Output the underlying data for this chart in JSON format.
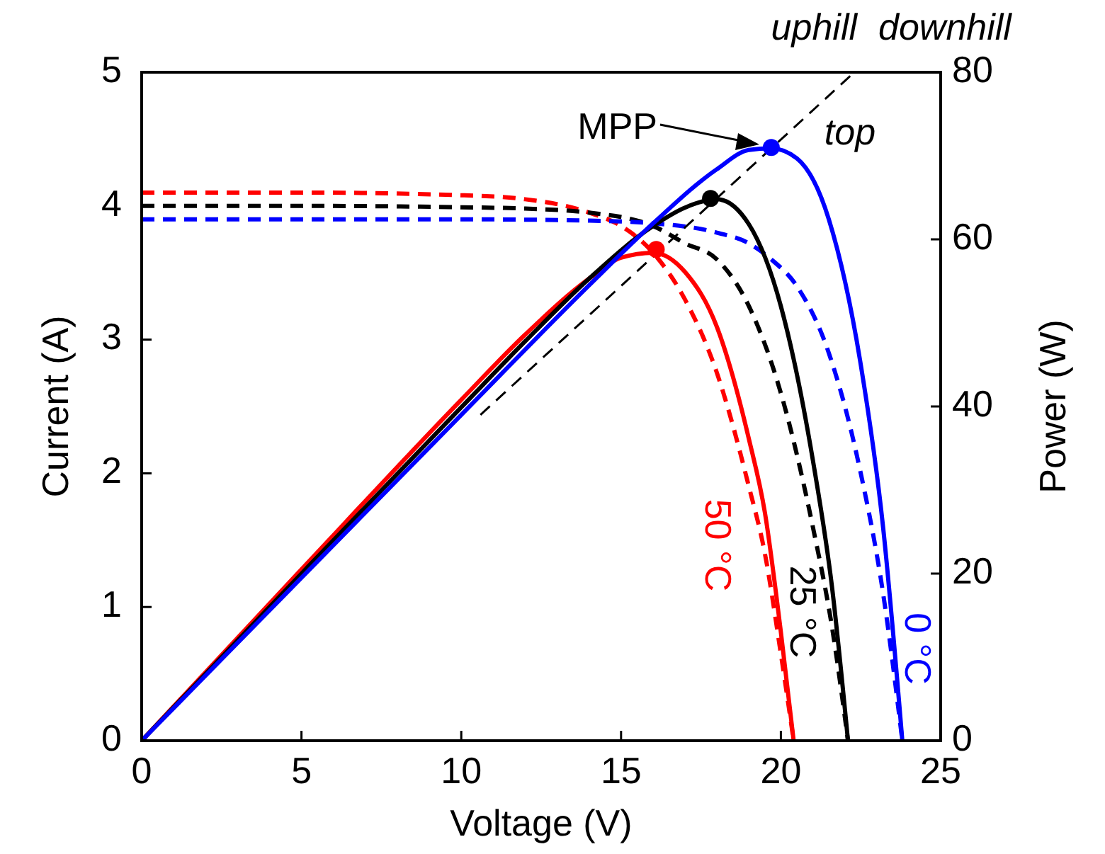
{
  "chart_data": {
    "type": "line",
    "xlabel": "Voltage (V)",
    "ylabel": "Current (A)",
    "y2label": "Power (W)",
    "xlim": [
      0,
      25
    ],
    "xticks": [
      0,
      5,
      10,
      15,
      20,
      25
    ],
    "ylim": [
      0,
      5
    ],
    "yticks": [
      0,
      1,
      2,
      3,
      4,
      5
    ],
    "y2lim": [
      0,
      80
    ],
    "y2ticks": [
      0,
      20,
      40,
      60,
      80
    ],
    "grid": false,
    "series": [
      {
        "name": "50 °C",
        "color": "#ff0000",
        "line_style": "dashed",
        "x": [
          0,
          5,
          10,
          12,
          14,
          15,
          16,
          17,
          18,
          19,
          19.5,
          20,
          20.4
        ],
        "values": [
          4.1,
          4.1,
          4.08,
          4.05,
          3.95,
          3.85,
          3.65,
          3.3,
          2.75,
          1.9,
          1.4,
          0.65,
          0
        ]
      },
      {
        "name": "25 °C",
        "color": "#000000",
        "line_style": "dashed",
        "x": [
          0,
          5,
          10,
          12,
          14,
          16,
          17,
          18,
          19,
          20,
          21,
          21.6,
          22.1
        ],
        "values": [
          4.0,
          4.0,
          3.99,
          3.98,
          3.95,
          3.85,
          3.72,
          3.6,
          3.25,
          2.6,
          1.6,
          0.85,
          0
        ]
      },
      {
        "name": "0 °C",
        "color": "#0000ff",
        "line_style": "dashed",
        "x": [
          0,
          5,
          10,
          14,
          16,
          18,
          19,
          19.7,
          20.5,
          21.5,
          22.5,
          23.2,
          23.8
        ],
        "values": [
          3.9,
          3.9,
          3.9,
          3.89,
          3.87,
          3.8,
          3.72,
          3.6,
          3.4,
          2.9,
          2.0,
          1.1,
          0
        ]
      },
      {
        "color": "#ff0000",
        "line_style": "solid",
        "axis": "y2",
        "x": [
          0,
          5,
          10,
          12,
          14,
          15,
          16,
          17,
          18,
          19,
          19.5,
          20,
          20.4
        ],
        "values": [
          0,
          20.5,
          40.8,
          48.6,
          55.3,
          57.8,
          58.4,
          56.1,
          49.5,
          36.1,
          27.3,
          13,
          0
        ]
      },
      {
        "color": "#000000",
        "line_style": "solid",
        "axis": "y2",
        "x": [
          0,
          5,
          10,
          12,
          14,
          16,
          17,
          18,
          19,
          20,
          21,
          21.6,
          22.1
        ],
        "values": [
          0,
          20,
          39.9,
          47.8,
          55.3,
          61.6,
          63.8,
          64.8,
          61.8,
          52,
          33.6,
          18.4,
          0
        ]
      },
      {
        "color": "#0000ff",
        "line_style": "solid",
        "axis": "y2",
        "x": [
          0,
          5,
          10,
          14,
          16,
          18,
          19,
          19.7,
          20.5,
          21.5,
          22.5,
          23.2,
          23.8
        ],
        "values": [
          0,
          19.5,
          39,
          54.5,
          61.9,
          68.4,
          70.7,
          70.9,
          69.7,
          62.4,
          45,
          25.5,
          0
        ]
      },
      {
        "type": "line",
        "color": "#000000",
        "line_style": "dashed",
        "axis": "y2",
        "x": [
          10.6,
          22.3
        ],
        "values": [
          39,
          80
        ]
      },
      {
        "type": "scatter",
        "marker": "circle",
        "axis": "y2",
        "colors": [
          "#ff0000",
          "#000000",
          "#0000ff"
        ],
        "x": [
          16.1,
          17.8,
          19.7
        ],
        "values": [
          58.8,
          64.9,
          71
        ]
      }
    ],
    "annotations": [
      "MPP",
      "uphill",
      "downhill",
      "top"
    ]
  }
}
